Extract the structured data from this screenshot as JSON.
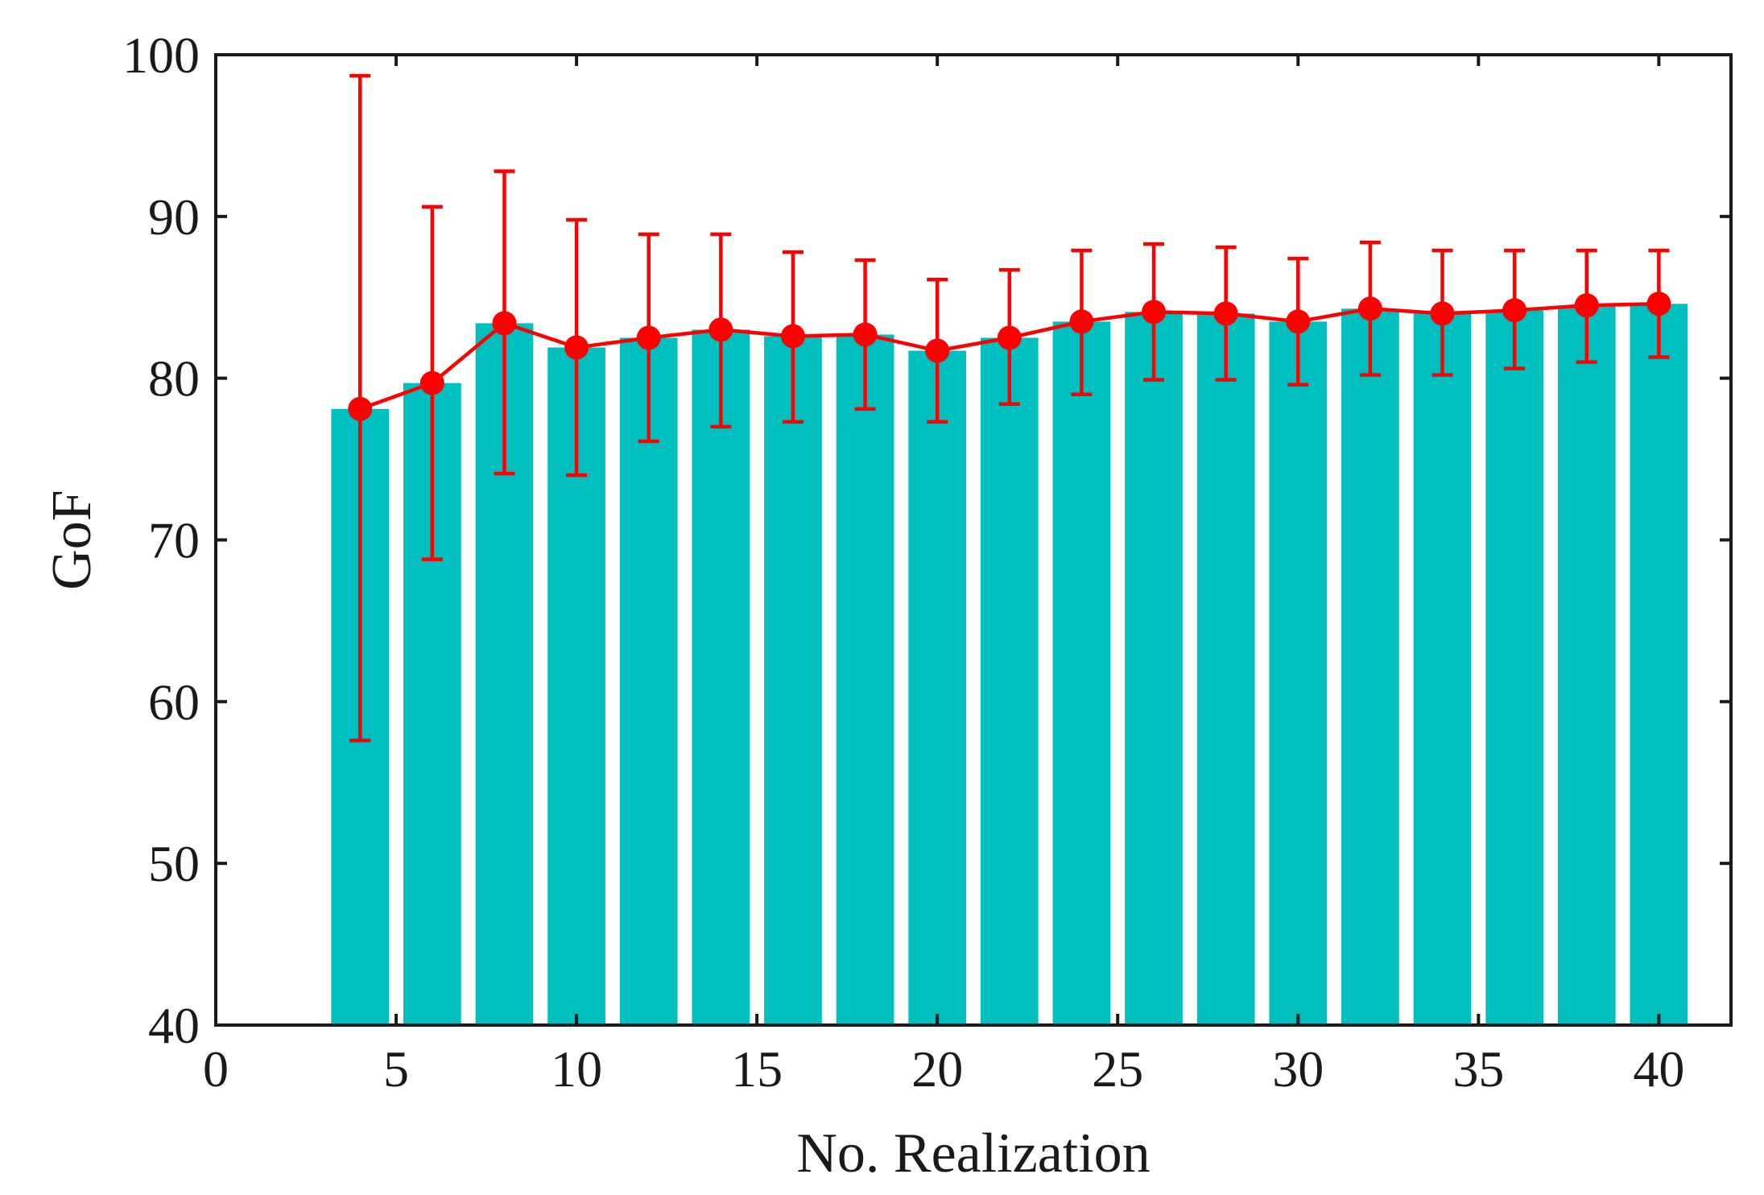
{
  "chart_data": {
    "type": "bar",
    "xlabel": "No. Realization",
    "ylabel": "GoF",
    "xlim": [
      0,
      42
    ],
    "ylim": [
      40,
      100
    ],
    "xticks": [
      0,
      5,
      10,
      15,
      20,
      25,
      30,
      35,
      40
    ],
    "yticks": [
      40,
      50,
      60,
      70,
      80,
      90,
      100
    ],
    "grid": false,
    "legend": "none",
    "bar_color": "#00bfbf",
    "line_color": "#ff0000",
    "x": [
      4,
      6,
      8,
      10,
      12,
      14,
      16,
      18,
      20,
      22,
      24,
      26,
      28,
      30,
      32,
      34,
      36,
      38,
      40
    ],
    "bar_values": [
      78.1,
      79.7,
      83.4,
      81.9,
      82.5,
      83.0,
      82.6,
      82.7,
      81.7,
      82.5,
      83.5,
      84.1,
      84.0,
      83.5,
      84.3,
      84.0,
      84.2,
      84.5,
      84.6
    ],
    "mean_values": [
      78.1,
      79.7,
      83.4,
      81.9,
      82.5,
      83.0,
      82.6,
      82.7,
      81.7,
      82.5,
      83.5,
      84.1,
      84.0,
      83.5,
      84.3,
      84.0,
      84.2,
      84.5,
      84.6
    ],
    "error_upper": [
      98.7,
      90.6,
      92.8,
      89.8,
      88.9,
      88.9,
      87.8,
      87.3,
      86.1,
      86.7,
      87.9,
      88.3,
      88.1,
      87.4,
      88.4,
      87.9,
      87.9,
      87.9,
      87.9
    ],
    "error_lower": [
      57.6,
      68.8,
      74.1,
      74.0,
      76.1,
      77.0,
      77.3,
      78.1,
      77.3,
      78.4,
      79.0,
      79.9,
      79.9,
      79.6,
      80.2,
      80.2,
      80.6,
      81.0,
      81.3
    ]
  }
}
